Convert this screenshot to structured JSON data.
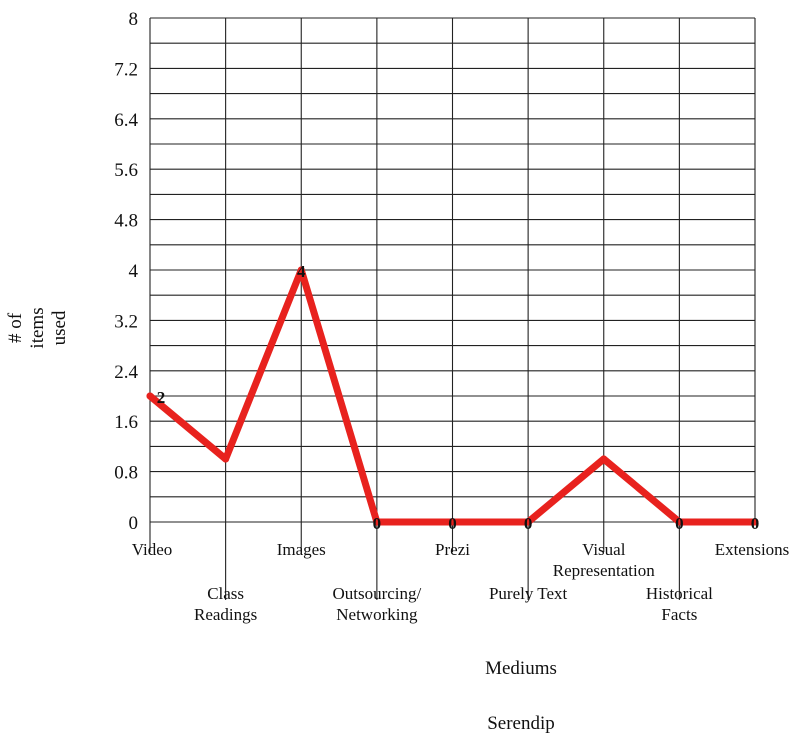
{
  "chart_data": {
    "type": "line",
    "categories": [
      "Video",
      "Class Readings",
      "Images",
      "Outsourcing/ Networking",
      "Prezi",
      "Purely Text",
      "Visual Representation",
      "Historical Facts",
      "Extensions"
    ],
    "category_lines": [
      [
        "Video"
      ],
      [
        "Class",
        "Readings"
      ],
      [
        "Images"
      ],
      [
        "Outsourcing/",
        "Networking"
      ],
      [
        "Prezi"
      ],
      [
        "Purely Text"
      ],
      [
        "Visual",
        "Representation"
      ],
      [
        "Historical",
        "Facts"
      ],
      [
        "Extensions"
      ]
    ],
    "series": [
      {
        "values": [
          2,
          1,
          4,
          0,
          0,
          0,
          1,
          0,
          0
        ],
        "color": "#e8221e"
      }
    ],
    "data_labels": [
      "2",
      "",
      "4",
      "0",
      "0",
      "0",
      "",
      "0",
      "0"
    ],
    "ylim": [
      0,
      8
    ],
    "yticks": [
      "0",
      "0.8",
      "1.6",
      "2.4",
      "3.2",
      "4",
      "4.8",
      "5.6",
      "6.4",
      "7.2",
      "8"
    ],
    "ylabel_lines": [
      "# of",
      "items",
      "used"
    ],
    "xlabel": "Mediums",
    "subtitle": "Serendip",
    "grid": true
  }
}
